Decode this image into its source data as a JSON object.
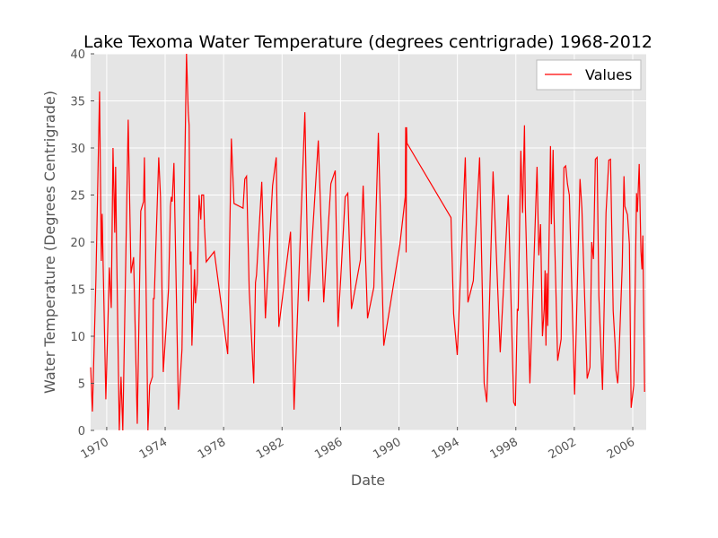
{
  "chart_data": {
    "type": "line",
    "title": "Lake Texoma Water Temperature (degrees centrigrade) 1968-2012",
    "xlabel": "Date",
    "ylabel": "Water Temperature (Degrees Centrigrade)",
    "x": [
      1968.9,
      1969.02,
      1969.26,
      1969.51,
      1969.63,
      1969.69,
      1969.75,
      1969.94,
      1970.18,
      1970.31,
      1970.43,
      1970.55,
      1970.61,
      1970.67,
      1970.86,
      1970.98,
      1971.1,
      1971.47,
      1971.66,
      1971.84,
      1972.09,
      1972.33,
      1972.52,
      1972.58,
      1972.7,
      1972.82,
      1972.94,
      1973.13,
      1973.19,
      1973.25,
      1973.56,
      1973.68,
      1973.87,
      1974.23,
      1974.36,
      1974.42,
      1974.48,
      1974.6,
      1974.91,
      1975.15,
      1975.46,
      1975.58,
      1975.64,
      1975.71,
      1975.77,
      1975.83,
      1976.01,
      1976.07,
      1976.2,
      1976.32,
      1976.44,
      1976.5,
      1976.63,
      1976.69,
      1976.81,
      1977.36,
      1978.28,
      1978.53,
      1978.71,
      1979.33,
      1979.45,
      1979.57,
      1979.75,
      1980.06,
      1980.18,
      1980.25,
      1980.61,
      1980.86,
      1981.35,
      1981.6,
      1981.78,
      1982.58,
      1982.82,
      1983.56,
      1983.8,
      1984.48,
      1984.85,
      1985.34,
      1985.64,
      1985.83,
      1986.32,
      1986.5,
      1986.75,
      1987.36,
      1987.55,
      1987.85,
      1988.28,
      1988.59,
      1988.96,
      1990.06,
      1990.43,
      1990.46,
      1990.49,
      1990.52,
      1990.55,
      1993.56,
      1993.74,
      1993.99,
      1994.54,
      1994.72,
      1995.09,
      1995.52,
      1995.83,
      1996.01,
      1996.44,
      1996.93,
      1997.48,
      1997.85,
      1997.97,
      1998.1,
      1998.16,
      1998.34,
      1998.46,
      1998.59,
      1998.65,
      1998.96,
      1999.45,
      1999.57,
      1999.69,
      1999.82,
      1999.94,
      2000.0,
      2000.06,
      2000.12,
      2000.18,
      2000.37,
      2000.43,
      2000.55,
      2000.61,
      2000.86,
      2001.1,
      2001.29,
      2001.41,
      2001.53,
      2001.66,
      2002.02,
      2002.39,
      2002.52,
      2002.88,
      2003.07,
      2003.19,
      2003.31,
      2003.44,
      2003.56,
      2003.68,
      2003.93,
      2004.17,
      2004.36,
      2004.48,
      2004.66,
      2004.79,
      2004.85,
      2004.97,
      2005.03,
      2005.28,
      2005.4,
      2005.46,
      2005.64,
      2005.77,
      2005.89,
      2006.07,
      2006.26,
      2006.32,
      2006.44,
      2006.56,
      2006.63,
      2006.69,
      2006.81
    ],
    "series": [
      {
        "name": "Values",
        "color": "#ff0000",
        "values": [
          6.7,
          2,
          16,
          36,
          18,
          23,
          18,
          3.3,
          17.3,
          13,
          30,
          21,
          28,
          20,
          0,
          5.7,
          0,
          33,
          16.7,
          18.4,
          0.7,
          23.3,
          24.3,
          29,
          14.3,
          0,
          4.8,
          5.7,
          14,
          14,
          29,
          24.8,
          6.2,
          15,
          23.8,
          24.8,
          24.3,
          28.4,
          2.2,
          8.6,
          40,
          33.8,
          32.4,
          17.6,
          19,
          9,
          17.1,
          13.5,
          15.7,
          25,
          22.4,
          25,
          25,
          21.6,
          17.9,
          19,
          8.1,
          31,
          24.1,
          23.6,
          26.7,
          27,
          15,
          5,
          15.7,
          16.5,
          26.4,
          11.9,
          26,
          29,
          11,
          21.1,
          2.2,
          33.8,
          13.7,
          30.8,
          13.6,
          26.2,
          27.6,
          11,
          24.8,
          25.2,
          12.9,
          18.1,
          26,
          11.9,
          15.2,
          31.6,
          9,
          19.7,
          24.8,
          32.2,
          18.9,
          32.2,
          30.5,
          22.6,
          12.4,
          8,
          29,
          13.6,
          15.9,
          29,
          5,
          3,
          27.5,
          8.3,
          25,
          3,
          2.6,
          12.9,
          12.7,
          29.7,
          23.1,
          32.4,
          23.8,
          5,
          28,
          18.6,
          21.9,
          10,
          12.9,
          17,
          9,
          16.7,
          11.1,
          30.2,
          21.9,
          29.8,
          23,
          7.4,
          9.7,
          27.9,
          28.1,
          26.2,
          25,
          3.8,
          26.7,
          23.6,
          5.5,
          6.7,
          20,
          18.2,
          28.8,
          29,
          14.3,
          4.3,
          23.1,
          28.7,
          28.8,
          12.7,
          9.2,
          6.4,
          5,
          6.7,
          17.5,
          27,
          23.8,
          22.9,
          19.8,
          2.4,
          4.8,
          25.2,
          23.2,
          28.3,
          19,
          17.1,
          20.7,
          4.1
        ]
      }
    ],
    "xlim": [
      1968.9,
      2006.92
    ],
    "xticks": [
      1970,
      1974,
      1978,
      1982,
      1986,
      1990,
      1994,
      1998,
      2002,
      2006
    ],
    "ylim": [
      0,
      40
    ],
    "yticks": [
      0,
      5,
      10,
      15,
      20,
      25,
      30,
      35,
      40
    ],
    "grid": true,
    "legend": "upper right"
  }
}
